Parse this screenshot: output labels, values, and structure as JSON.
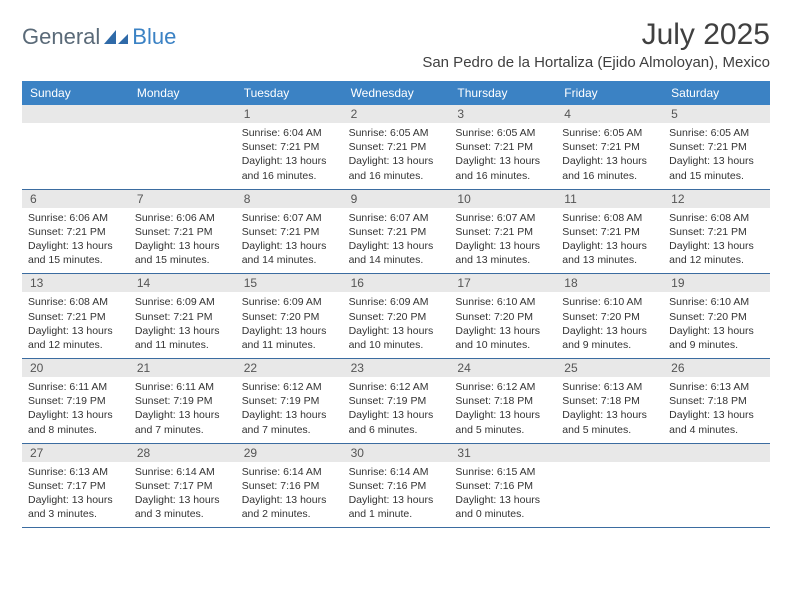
{
  "brand": {
    "part1": "General",
    "part2": "Blue"
  },
  "title": "July 2025",
  "location": "San Pedro de la Hortaliza (Ejido Almoloyan), Mexico",
  "colors": {
    "header_bg": "#3b82c4",
    "header_text": "#ffffff",
    "daynum_bg": "#e8e8e8",
    "border": "#3b6ca0",
    "text": "#333333"
  },
  "dayNames": [
    "Sunday",
    "Monday",
    "Tuesday",
    "Wednesday",
    "Thursday",
    "Friday",
    "Saturday"
  ],
  "weeks": [
    [
      null,
      null,
      {
        "n": "1",
        "sr": "Sunrise: 6:04 AM",
        "ss": "Sunset: 7:21 PM",
        "d1": "Daylight: 13 hours",
        "d2": "and 16 minutes."
      },
      {
        "n": "2",
        "sr": "Sunrise: 6:05 AM",
        "ss": "Sunset: 7:21 PM",
        "d1": "Daylight: 13 hours",
        "d2": "and 16 minutes."
      },
      {
        "n": "3",
        "sr": "Sunrise: 6:05 AM",
        "ss": "Sunset: 7:21 PM",
        "d1": "Daylight: 13 hours",
        "d2": "and 16 minutes."
      },
      {
        "n": "4",
        "sr": "Sunrise: 6:05 AM",
        "ss": "Sunset: 7:21 PM",
        "d1": "Daylight: 13 hours",
        "d2": "and 16 minutes."
      },
      {
        "n": "5",
        "sr": "Sunrise: 6:05 AM",
        "ss": "Sunset: 7:21 PM",
        "d1": "Daylight: 13 hours",
        "d2": "and 15 minutes."
      }
    ],
    [
      {
        "n": "6",
        "sr": "Sunrise: 6:06 AM",
        "ss": "Sunset: 7:21 PM",
        "d1": "Daylight: 13 hours",
        "d2": "and 15 minutes."
      },
      {
        "n": "7",
        "sr": "Sunrise: 6:06 AM",
        "ss": "Sunset: 7:21 PM",
        "d1": "Daylight: 13 hours",
        "d2": "and 15 minutes."
      },
      {
        "n": "8",
        "sr": "Sunrise: 6:07 AM",
        "ss": "Sunset: 7:21 PM",
        "d1": "Daylight: 13 hours",
        "d2": "and 14 minutes."
      },
      {
        "n": "9",
        "sr": "Sunrise: 6:07 AM",
        "ss": "Sunset: 7:21 PM",
        "d1": "Daylight: 13 hours",
        "d2": "and 14 minutes."
      },
      {
        "n": "10",
        "sr": "Sunrise: 6:07 AM",
        "ss": "Sunset: 7:21 PM",
        "d1": "Daylight: 13 hours",
        "d2": "and 13 minutes."
      },
      {
        "n": "11",
        "sr": "Sunrise: 6:08 AM",
        "ss": "Sunset: 7:21 PM",
        "d1": "Daylight: 13 hours",
        "d2": "and 13 minutes."
      },
      {
        "n": "12",
        "sr": "Sunrise: 6:08 AM",
        "ss": "Sunset: 7:21 PM",
        "d1": "Daylight: 13 hours",
        "d2": "and 12 minutes."
      }
    ],
    [
      {
        "n": "13",
        "sr": "Sunrise: 6:08 AM",
        "ss": "Sunset: 7:21 PM",
        "d1": "Daylight: 13 hours",
        "d2": "and 12 minutes."
      },
      {
        "n": "14",
        "sr": "Sunrise: 6:09 AM",
        "ss": "Sunset: 7:21 PM",
        "d1": "Daylight: 13 hours",
        "d2": "and 11 minutes."
      },
      {
        "n": "15",
        "sr": "Sunrise: 6:09 AM",
        "ss": "Sunset: 7:20 PM",
        "d1": "Daylight: 13 hours",
        "d2": "and 11 minutes."
      },
      {
        "n": "16",
        "sr": "Sunrise: 6:09 AM",
        "ss": "Sunset: 7:20 PM",
        "d1": "Daylight: 13 hours",
        "d2": "and 10 minutes."
      },
      {
        "n": "17",
        "sr": "Sunrise: 6:10 AM",
        "ss": "Sunset: 7:20 PM",
        "d1": "Daylight: 13 hours",
        "d2": "and 10 minutes."
      },
      {
        "n": "18",
        "sr": "Sunrise: 6:10 AM",
        "ss": "Sunset: 7:20 PM",
        "d1": "Daylight: 13 hours",
        "d2": "and 9 minutes."
      },
      {
        "n": "19",
        "sr": "Sunrise: 6:10 AM",
        "ss": "Sunset: 7:20 PM",
        "d1": "Daylight: 13 hours",
        "d2": "and 9 minutes."
      }
    ],
    [
      {
        "n": "20",
        "sr": "Sunrise: 6:11 AM",
        "ss": "Sunset: 7:19 PM",
        "d1": "Daylight: 13 hours",
        "d2": "and 8 minutes."
      },
      {
        "n": "21",
        "sr": "Sunrise: 6:11 AM",
        "ss": "Sunset: 7:19 PM",
        "d1": "Daylight: 13 hours",
        "d2": "and 7 minutes."
      },
      {
        "n": "22",
        "sr": "Sunrise: 6:12 AM",
        "ss": "Sunset: 7:19 PM",
        "d1": "Daylight: 13 hours",
        "d2": "and 7 minutes."
      },
      {
        "n": "23",
        "sr": "Sunrise: 6:12 AM",
        "ss": "Sunset: 7:19 PM",
        "d1": "Daylight: 13 hours",
        "d2": "and 6 minutes."
      },
      {
        "n": "24",
        "sr": "Sunrise: 6:12 AM",
        "ss": "Sunset: 7:18 PM",
        "d1": "Daylight: 13 hours",
        "d2": "and 5 minutes."
      },
      {
        "n": "25",
        "sr": "Sunrise: 6:13 AM",
        "ss": "Sunset: 7:18 PM",
        "d1": "Daylight: 13 hours",
        "d2": "and 5 minutes."
      },
      {
        "n": "26",
        "sr": "Sunrise: 6:13 AM",
        "ss": "Sunset: 7:18 PM",
        "d1": "Daylight: 13 hours",
        "d2": "and 4 minutes."
      }
    ],
    [
      {
        "n": "27",
        "sr": "Sunrise: 6:13 AM",
        "ss": "Sunset: 7:17 PM",
        "d1": "Daylight: 13 hours",
        "d2": "and 3 minutes."
      },
      {
        "n": "28",
        "sr": "Sunrise: 6:14 AM",
        "ss": "Sunset: 7:17 PM",
        "d1": "Daylight: 13 hours",
        "d2": "and 3 minutes."
      },
      {
        "n": "29",
        "sr": "Sunrise: 6:14 AM",
        "ss": "Sunset: 7:16 PM",
        "d1": "Daylight: 13 hours",
        "d2": "and 2 minutes."
      },
      {
        "n": "30",
        "sr": "Sunrise: 6:14 AM",
        "ss": "Sunset: 7:16 PM",
        "d1": "Daylight: 13 hours",
        "d2": "and 1 minute."
      },
      {
        "n": "31",
        "sr": "Sunrise: 6:15 AM",
        "ss": "Sunset: 7:16 PM",
        "d1": "Daylight: 13 hours",
        "d2": "and 0 minutes."
      },
      null,
      null
    ]
  ]
}
